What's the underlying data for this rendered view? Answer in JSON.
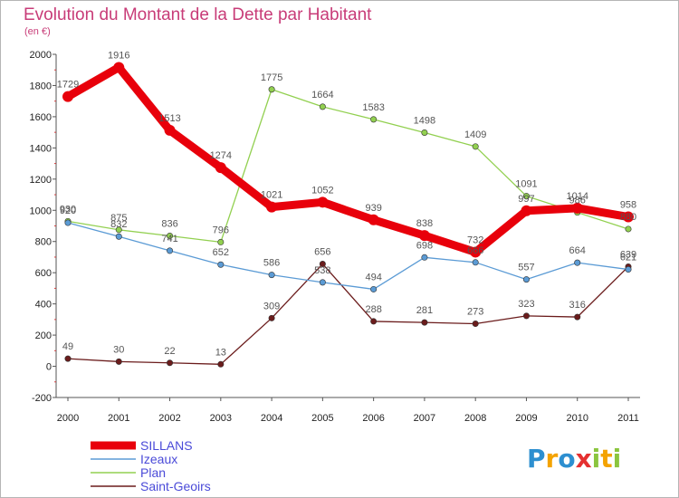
{
  "chart_data": {
    "type": "line",
    "title": "Evolution du Montant de la Dette par Habitant",
    "subtitle": "(en €)",
    "x": [
      "2000",
      "2001",
      "2002",
      "2003",
      "2004",
      "2005",
      "2006",
      "2007",
      "2008",
      "2009",
      "2010",
      "2011"
    ],
    "ylim": [
      -200,
      2000
    ],
    "yticks": [
      -200,
      0,
      200,
      400,
      600,
      800,
      1000,
      1200,
      1400,
      1600,
      1800,
      2000
    ],
    "grid": false,
    "legend_position": "bottom-left",
    "series": [
      {
        "name": "SILLANS",
        "color": "#e8000b",
        "values": [
          1729,
          1916,
          1513,
          1274,
          1021,
          1052,
          939,
          838,
          732,
          997,
          1014,
          958
        ]
      },
      {
        "name": "Izeaux",
        "color": "#5b9bd5",
        "values": [
          920,
          832,
          741,
          652,
          586,
          538,
          494,
          698,
          666,
          557,
          664,
          621
        ]
      },
      {
        "name": "Plan",
        "color": "#92d050",
        "values": [
          930,
          875,
          836,
          796,
          1775,
          1664,
          1583,
          1498,
          1409,
          1091,
          986,
          880
        ]
      },
      {
        "name": "Saint-Geoirs",
        "color": "#6b1c1c",
        "values": [
          49,
          30,
          22,
          13,
          309,
          656,
          288,
          281,
          273,
          323,
          316,
          639
        ]
      }
    ]
  },
  "logo": {
    "letters": [
      "P",
      "r",
      "o",
      "x",
      "i",
      "t",
      "i"
    ],
    "colors": [
      "#2d8fd0",
      "#f4a300",
      "#2d8fd0",
      "#e53030",
      "#8bc53f",
      "#f4a300",
      "#8bc53f"
    ]
  }
}
